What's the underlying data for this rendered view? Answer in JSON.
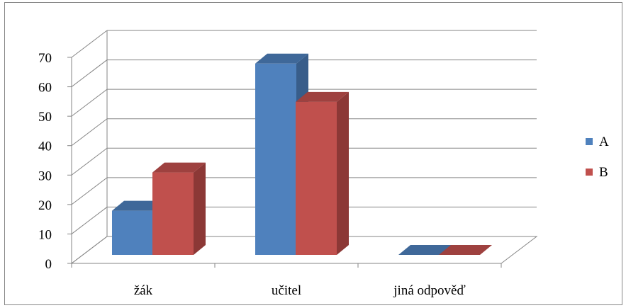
{
  "chart_data": {
    "type": "bar",
    "three_d": true,
    "title": "",
    "xlabel": "",
    "ylabel": "",
    "categories": [
      "žák",
      "učitel",
      "jiná odpověď"
    ],
    "series": [
      {
        "name": "A",
        "values": [
          15,
          65,
          0
        ],
        "color": "#4F81BD",
        "side_color": "#385D8A",
        "top_color": "#3F6899"
      },
      {
        "name": "B",
        "values": [
          28,
          52,
          0
        ],
        "color": "#C0504D",
        "side_color": "#8C3836",
        "top_color": "#9E413F"
      }
    ],
    "ylim": [
      0,
      70
    ],
    "yticks": [
      0,
      10,
      20,
      30,
      40,
      50,
      60,
      70
    ],
    "grid": true,
    "legend_position": "right"
  }
}
